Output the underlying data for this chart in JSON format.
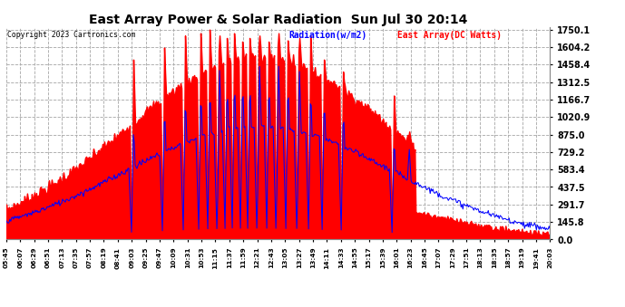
{
  "title": "East Array Power & Solar Radiation  Sun Jul 30 20:14",
  "copyright": "Copyright 2023 Cartronics.com",
  "legend_radiation": "Radiation(w/m2)",
  "legend_east": "East Array(DC Watts)",
  "ymax": 1750.1,
  "yticks": [
    0.0,
    145.8,
    291.7,
    437.5,
    583.4,
    729.2,
    875.0,
    1020.9,
    1166.7,
    1312.5,
    1458.4,
    1604.2,
    1750.1
  ],
  "radiation_color": "#0000FF",
  "east_color": "#FF0000",
  "east_fill_color": "#FF0000",
  "background_color": "#FFFFFF",
  "grid_color": "#AAAAAA",
  "xtick_labels": [
    "05:45",
    "06:07",
    "06:29",
    "06:51",
    "07:13",
    "07:35",
    "07:57",
    "08:19",
    "08:41",
    "09:03",
    "09:25",
    "09:47",
    "10:09",
    "10:31",
    "10:53",
    "11:15",
    "11:37",
    "11:59",
    "12:21",
    "12:43",
    "13:05",
    "13:27",
    "13:49",
    "14:11",
    "14:33",
    "14:55",
    "15:17",
    "15:39",
    "16:01",
    "16:23",
    "16:45",
    "17:07",
    "17:29",
    "17:51",
    "18:13",
    "18:35",
    "18:57",
    "19:19",
    "19:41",
    "20:03"
  ],
  "num_points": 600
}
